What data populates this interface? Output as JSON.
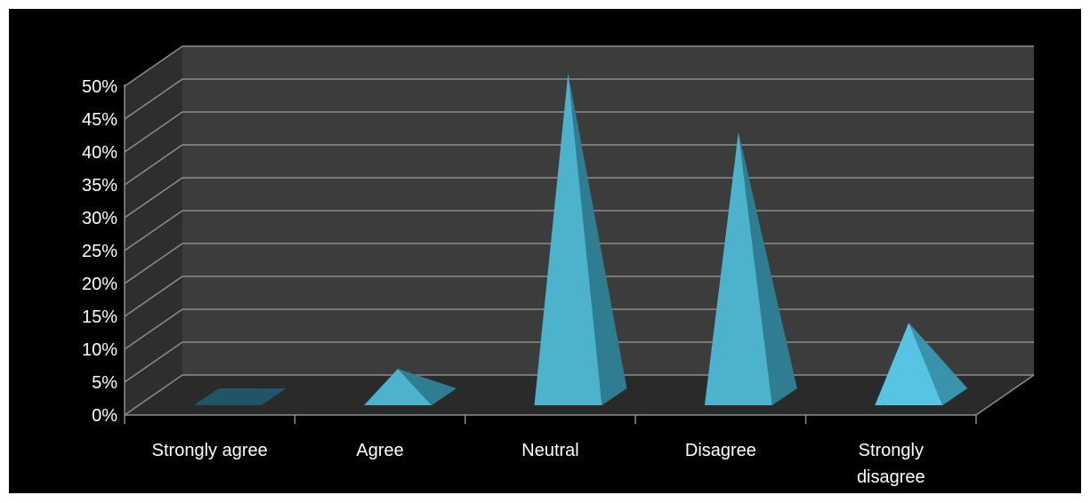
{
  "chart_data": {
    "type": "bar",
    "style": "3d-pyramid",
    "categories": [
      "Strongly agree",
      "Agree",
      "Neutral",
      "Disagree",
      "Strongly disagree"
    ],
    "category_lines": [
      [
        "Strongly agree"
      ],
      [
        "Agree"
      ],
      [
        "Neutral"
      ],
      [
        "Disagree"
      ],
      [
        "Strongly",
        "disagree"
      ]
    ],
    "values": [
      0,
      5,
      50,
      41,
      12
    ],
    "ylim": [
      0,
      50
    ],
    "yticks": [
      0,
      5,
      10,
      15,
      20,
      25,
      30,
      35,
      40,
      45,
      50
    ],
    "ytick_labels": [
      "0%",
      "5%",
      "10%",
      "15%",
      "20%",
      "25%",
      "30%",
      "35%",
      "40%",
      "45%",
      "50%"
    ],
    "grid": true,
    "colors": {
      "front_face": "#4db3cc",
      "side_face": "#2e7d90",
      "last_front_face": "#55c5e3",
      "last_side_face": "#3a93ad",
      "zero_base": "#1f5564",
      "wall": "#3c3c3c",
      "side_wall": "#2e2e2e",
      "floor": "#2a2a2a",
      "gridline": "#8c8c8c"
    }
  }
}
